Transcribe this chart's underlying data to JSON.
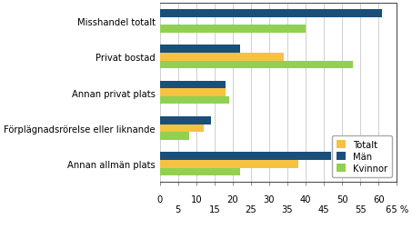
{
  "categories": [
    "Misshandel totalt",
    "Privat bostad",
    "Annan privat plats",
    "Förplägnadsrörelse eller liknande",
    "Annan allmän plats"
  ],
  "series": {
    "Totalt": [
      null,
      34,
      18,
      12,
      38
    ],
    "Män": [
      61,
      22,
      18,
      14,
      47
    ],
    "Kvinnor": [
      40,
      53,
      19,
      8,
      22
    ]
  },
  "colors": {
    "Totalt": "#f5c242",
    "Män": "#1a4f7a",
    "Kvinnor": "#92d050"
  },
  "xlim": [
    0,
    65
  ],
  "xticks_top": [
    0,
    10,
    20,
    30,
    40,
    50,
    60
  ],
  "xtick_labels_top": [
    "0",
    "10",
    "20",
    "30",
    "40",
    "50",
    "60"
  ],
  "xticks_bottom": [
    5,
    15,
    25,
    35,
    45,
    55,
    65
  ],
  "xtick_labels_bottom": [
    "5",
    "15",
    "25",
    "35",
    "45",
    "55",
    "65 %"
  ],
  "legend_labels": [
    "Totalt",
    "Män",
    "Kvinnor"
  ],
  "bar_height": 0.22,
  "background_color": "#ffffff",
  "grid_color": "#c8c8c8"
}
